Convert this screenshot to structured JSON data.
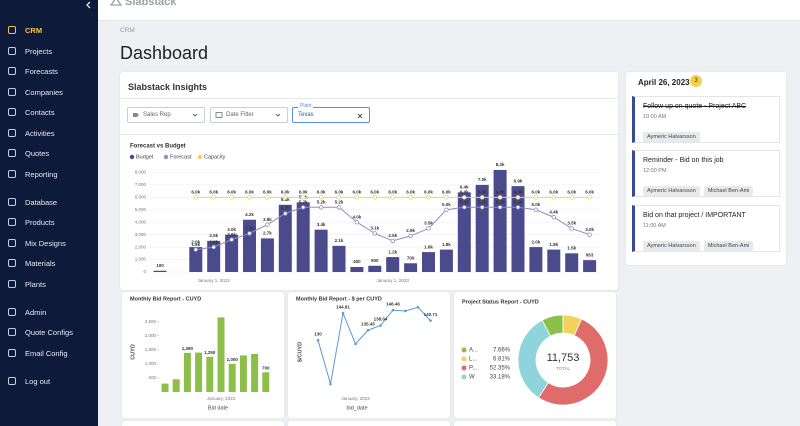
{
  "app": {
    "logo": "Slabstack"
  },
  "sidebar": {
    "groups": [
      [
        "CRM",
        "Projects",
        "Forecasts",
        "Companies",
        "Contacts",
        "Activities",
        "Quotes",
        "Reporting"
      ],
      [
        "Database",
        "Products",
        "Mix Designs",
        "Materials",
        "Plants"
      ],
      [
        "Admin",
        "Quote Configs",
        "Email Config"
      ],
      [
        "Log out"
      ]
    ]
  },
  "header": {
    "breadcrumb": "CRM",
    "title": "Dashboard"
  },
  "insights": {
    "title": "Slabstack Insights",
    "filters": [
      {
        "placeholder": "Sales Rep"
      },
      {
        "placeholder": "Date Filter"
      },
      {
        "label": "Plant",
        "value": "Texas"
      }
    ]
  },
  "agenda": {
    "date": "April 26, 2023",
    "count": 3,
    "tasks": [
      {
        "title": "Follow up on quote - Project ABC",
        "time": "10:00 AM",
        "tags": [
          "Aymeric Halvarsson"
        ],
        "done": true
      },
      {
        "title": "Reminder - Bid on this job",
        "time": "12:00 PM",
        "tags": [
          "Aymeric Halvarsson",
          "Michael Ben-Ami"
        ],
        "done": false
      },
      {
        "title": "Bid on that project / IMPORTANT",
        "time": "11:00 AM",
        "tags": [
          "Aymeric Halvarsson",
          "Michael Ben-Ami"
        ],
        "done": false
      }
    ]
  },
  "chart_data": [
    {
      "type": "combo",
      "title": "Forecast vs Budget",
      "categories": [
        null,
        null,
        null,
        "January 1, 2022",
        null,
        null,
        null,
        null,
        null,
        null,
        null,
        null,
        null,
        "January 1, 2023",
        null,
        null,
        null,
        null,
        null,
        null,
        null,
        null,
        null,
        null,
        null
      ],
      "ylim": [
        0,
        9000
      ],
      "yticks": [
        0,
        {
          "value": 1000,
          "label": "1,000"
        },
        {
          "value": 2000,
          "label": "2,000"
        },
        {
          "value": 3000,
          "label": "3,000"
        },
        {
          "value": 4000,
          "label": "4,000"
        },
        {
          "value": 5000,
          "label": "5,000"
        },
        {
          "value": 6000,
          "label": "6,000"
        },
        {
          "value": 7000,
          "label": "7,000"
        },
        {
          "value": 8000,
          "label": "8,000"
        }
      ],
      "grid": true,
      "series": [
        {
          "name": "Budget",
          "mark": "bar",
          "color": "#4b4a8c",
          "values": [
            100,
            null,
            2000,
            2500,
            3000,
            4200,
            2700,
            5400,
            5600,
            3400,
            2100,
            400,
            500,
            1200,
            700,
            1600,
            1800,
            6400,
            7000,
            8200,
            6900,
            2000,
            1800,
            1500,
            953
          ],
          "value_labels": [
            "100",
            null,
            "2.0k",
            "2.5k",
            "3.0k",
            "4.2k",
            "2.7k",
            "5.4k",
            "5.6k",
            "3.4k",
            "2.1k",
            "400",
            "500",
            "1.2k",
            "700",
            "1.6k",
            "1.8k",
            "6.4k",
            "7.0k",
            "8.2k",
            "6.9k",
            "2.0k",
            "1.8k",
            "1.5k",
            "953"
          ]
        },
        {
          "name": "Forecast",
          "mark": "line",
          "color": "#8f8ec0",
          "values": [
            null,
            null,
            1800,
            2000,
            2600,
            3100,
            3800,
            4700,
            5200,
            5200,
            5200,
            4000,
            3100,
            2500,
            2900,
            3500,
            5000,
            5200,
            5200,
            5200,
            5200,
            5000,
            4400,
            3500,
            3000
          ],
          "value_labels": [
            null,
            null,
            "1.8k",
            "2.0k",
            "2.6k",
            "3.1k",
            "3.8k",
            "4.7k",
            "5.2k",
            "5.2k",
            "5.2k",
            "4.0k",
            "3.1k",
            "2.5k",
            "2.9k",
            "3.5k",
            "5.0k",
            "5.2k",
            "5.2k",
            "5.2k",
            "5.2k",
            "5.0k",
            "4.4k",
            "3.5k",
            "3.0k"
          ]
        },
        {
          "name": "Capacity",
          "mark": "line",
          "color": "#f0d060",
          "values": [
            null,
            null,
            6000,
            6000,
            6000,
            6000,
            6000,
            6000,
            6000,
            6000,
            6000,
            6000,
            6000,
            6000,
            6000,
            6000,
            6000,
            6000,
            6000,
            6000,
            6000,
            6000,
            6000,
            6000,
            6000
          ],
          "value_labels": [
            null,
            null,
            "6.0k",
            "6.0k",
            "6.0k",
            "6.0k",
            "6.0k",
            "6.0k",
            "6.0k",
            "6.0k",
            "6.0k",
            "6.0k",
            "6.0k",
            "6.0k",
            "6.0k",
            "6.0k",
            "6.0k",
            "6.0k",
            "6.0k",
            "6.0k",
            "6.0k",
            "6.0k",
            "6.0k",
            "6.0k",
            "6.0k"
          ]
        }
      ]
    },
    {
      "type": "bar",
      "title": "Monthly Bid Report - CUYD",
      "x_label": "Bid date",
      "y_label": "CUYD",
      "color": "#8bbf4a",
      "categories": [
        null,
        null,
        null,
        null,
        null,
        "January, 2023",
        null,
        null,
        null,
        null
      ],
      "values": [
        300,
        450,
        1390,
        1400,
        1250,
        2650,
        1000,
        1300,
        1350,
        700
      ],
      "value_labels": [
        null,
        null,
        "1,390",
        null,
        "1,250",
        null,
        "1,000",
        null,
        null,
        "700"
      ],
      "ylim": [
        0,
        2700
      ],
      "yticks": [
        500,
        {
          "value": 1000,
          "label": "1,000"
        },
        {
          "value": 1500,
          "label": "1,500"
        },
        {
          "value": 2000,
          "label": "2,000"
        },
        {
          "value": 2500,
          "label": "2,500"
        }
      ]
    },
    {
      "type": "line",
      "title": "Monthly Bid Report - $ per CUYD",
      "x_label": "bid_date",
      "y_label": "$/CUYD",
      "color": "#5b9bd5",
      "categories": [
        null,
        null,
        null,
        "January, 2023",
        null,
        null,
        null,
        null,
        null,
        null
      ],
      "values": [
        130,
        106,
        144.81,
        128,
        135.45,
        138.04,
        146.46,
        146,
        148,
        140.71
      ],
      "value_labels": [
        "130",
        null,
        "144.81",
        null,
        "135.45",
        "138.04",
        "146.46",
        null,
        null,
        "140.71"
      ],
      "ylim": [
        100,
        152
      ]
    },
    {
      "type": "donut",
      "title": "Project Status Report - CUYD",
      "categories": [
        "A...",
        "L...",
        "P...",
        "W"
      ],
      "values": [
        7.66,
        6.81,
        52.35,
        33.18
      ],
      "value_labels": [
        "7.66%",
        "6.81%",
        "52.35%",
        "33.18%"
      ],
      "colors": [
        "#8bbf4a",
        "#f2d35a",
        "#e06b6b",
        "#8fd3dc"
      ],
      "total": "11,753",
      "total_label": "TOTAL"
    }
  ]
}
